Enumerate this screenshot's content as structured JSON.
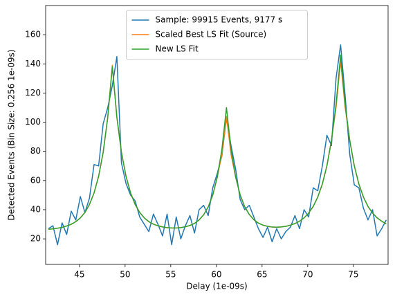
{
  "chart_data": {
    "type": "line",
    "xlabel": "Delay (1e-09s)",
    "ylabel": "Detected Events (Bin Size: 0.256 1e-09s)",
    "x": [
      41.6,
      42.1,
      42.6,
      43.1,
      43.6,
      44.1,
      44.6,
      45.1,
      45.6,
      46.1,
      46.6,
      47.1,
      47.6,
      48.1,
      48.6,
      49.1,
      49.6,
      50.1,
      50.6,
      51.1,
      51.6,
      52.1,
      52.6,
      53.1,
      53.6,
      54.1,
      54.6,
      55.1,
      55.6,
      56.1,
      56.6,
      57.1,
      57.6,
      58.1,
      58.6,
      59.1,
      59.6,
      60.1,
      60.6,
      61.1,
      61.6,
      62.1,
      62.6,
      63.1,
      63.6,
      64.1,
      64.6,
      65.1,
      65.6,
      66.1,
      66.6,
      67.1,
      67.6,
      68.1,
      68.6,
      69.1,
      69.6,
      70.1,
      70.6,
      71.1,
      71.6,
      72.1,
      72.6,
      73.1,
      73.6,
      74.1,
      74.6,
      75.1,
      75.6,
      76.1,
      76.6,
      77.1,
      77.6,
      78.1,
      78.6
    ],
    "series": [
      {
        "name": "Sample: 99915 Events, 9177 s",
        "color": "#1f77b4",
        "values": [
          27,
          29,
          16,
          31,
          23,
          39,
          33,
          49,
          38,
          48,
          71,
          70,
          99,
          110,
          125,
          145,
          72,
          58,
          50,
          46,
          35,
          30,
          25,
          37,
          30,
          22,
          37,
          16,
          35,
          20,
          29,
          36,
          24,
          40,
          43,
          36,
          55,
          65,
          77,
          103,
          84,
          68,
          47,
          40,
          43,
          35,
          27,
          21,
          28,
          18,
          27,
          20,
          25,
          28,
          36,
          27,
          40,
          35,
          55,
          53,
          70,
          91,
          84,
          130,
          153,
          118,
          78,
          57,
          55,
          41,
          33,
          40,
          22,
          27,
          33
        ]
      },
      {
        "name": "Scaled Best LS Fit (Source)",
        "color": "#ff7f0e",
        "values": [
          26.6,
          26.9,
          27.3,
          27.9,
          28.8,
          30.0,
          31.8,
          34.4,
          38.1,
          43.6,
          51.5,
          62.9,
          79.4,
          103.3,
          139,
          103.3,
          79.4,
          62.9,
          51.5,
          43.6,
          38.1,
          34.4,
          31.8,
          30.1,
          29.0,
          28.2,
          27.7,
          27.5,
          27.5,
          27.7,
          28.3,
          29.2,
          30.6,
          33.0,
          36.5,
          41.9,
          50.1,
          62.5,
          78,
          104,
          78,
          62.5,
          50.1,
          42.0,
          36.7,
          33.1,
          30.8,
          29.4,
          28.6,
          28.1,
          28.0,
          28.2,
          28.6,
          29.4,
          30.5,
          32.1,
          34.4,
          37.7,
          42.2,
          48.7,
          57.6,
          70.1,
          87.6,
          110,
          142,
          110,
          87.6,
          70.1,
          57.6,
          48.7,
          42.2,
          37.7,
          34.4,
          32.1,
          30.3
        ]
      },
      {
        "name": "New LS Fit",
        "color": "#2ca02c",
        "values": [
          26.6,
          26.9,
          27.3,
          27.9,
          28.8,
          30.0,
          31.8,
          34.4,
          38.1,
          43.6,
          51.5,
          62.9,
          79.4,
          103.3,
          138,
          103.3,
          79.4,
          62.9,
          51.5,
          43.6,
          38.1,
          34.4,
          31.8,
          30.1,
          29.0,
          28.2,
          27.7,
          27.5,
          27.5,
          27.7,
          28.3,
          29.2,
          30.6,
          33.0,
          36.5,
          41.9,
          50.1,
          62.5,
          81.4,
          110,
          81.4,
          62.5,
          50.1,
          42.0,
          36.7,
          33.1,
          30.8,
          29.4,
          28.6,
          28.1,
          28.0,
          28.2,
          28.6,
          29.4,
          30.5,
          32.1,
          34.4,
          37.7,
          42.2,
          48.7,
          57.6,
          70.1,
          87.6,
          112,
          146,
          112,
          87.6,
          70.1,
          57.6,
          48.7,
          42.2,
          37.7,
          34.4,
          32.1,
          30.3
        ]
      }
    ],
    "xlim": [
      41.3,
      78.8
    ],
    "xticks": [
      45,
      50,
      55,
      60,
      65,
      70,
      75
    ],
    "ylim": [
      2.5,
      180
    ],
    "yticks": [
      20,
      40,
      60,
      80,
      100,
      120,
      140,
      160
    ],
    "legend": "upper center"
  }
}
